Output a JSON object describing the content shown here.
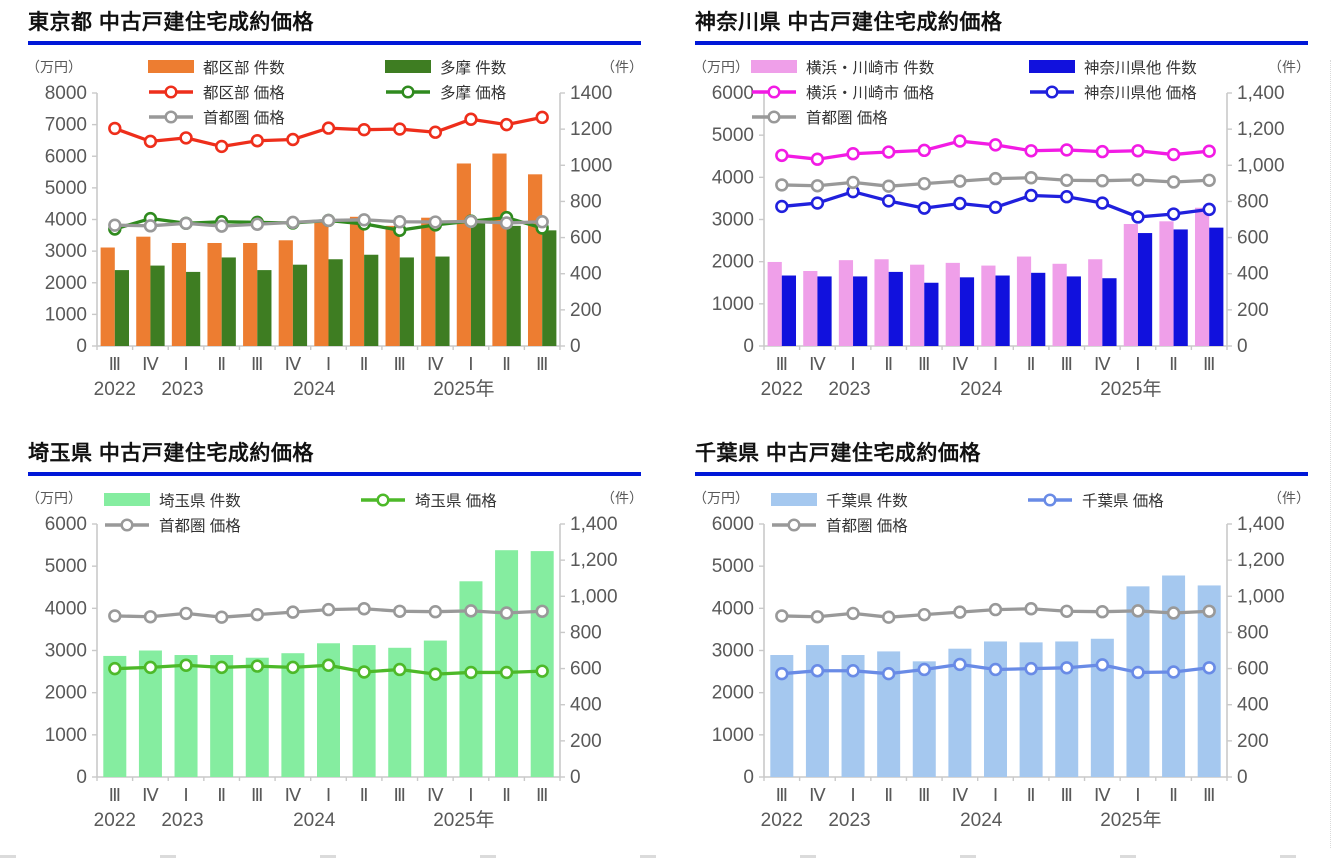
{
  "page": {
    "background": "#FFFFFF"
  },
  "chart_data": [
    {
      "type": "bar",
      "region": "tokyo",
      "title": "東京都 中古戸建住宅成約価格",
      "unit_left": "（万円）",
      "unit_right": "（件）",
      "underline_color": "#0018D8",
      "categories": [
        "Ⅲ",
        "Ⅳ",
        "Ⅰ",
        "Ⅱ",
        "Ⅲ",
        "Ⅳ",
        "Ⅰ",
        "Ⅱ",
        "Ⅲ",
        "Ⅳ",
        "Ⅰ",
        "Ⅱ",
        "Ⅲ"
      ],
      "year_labels": [
        {
          "label": "2022",
          "pos": 0
        },
        {
          "label": "2023",
          "pos": 1.9
        },
        {
          "label": "2024",
          "pos": 5.6
        },
        {
          "label": "2025年",
          "pos": 9.8
        }
      ],
      "left_axis": {
        "min": 0,
        "max": 8000,
        "step": 1000,
        "format": "plain"
      },
      "right_axis": {
        "min": 0,
        "max": 1400,
        "step": 200,
        "format": "plain"
      },
      "grid": "off",
      "legend_position": "top-inside",
      "bar_series": [
        {
          "name": "都区部 件数",
          "color": "#ED7D31",
          "axis": "right",
          "values": [
            545,
            605,
            570,
            570,
            570,
            585,
            700,
            715,
            665,
            710,
            1010,
            1065,
            950
          ]
        },
        {
          "name": "多摩 件数",
          "color": "#3E7D22",
          "axis": "right",
          "values": [
            420,
            445,
            410,
            490,
            420,
            450,
            480,
            505,
            490,
            495,
            685,
            665,
            640
          ]
        }
      ],
      "line_series": [
        {
          "name": "都区部 価格",
          "color": "#EE2E1B",
          "axis": "left",
          "values": [
            6880,
            6470,
            6580,
            6310,
            6490,
            6530,
            6890,
            6840,
            6860,
            6760,
            7170,
            7000,
            7230
          ]
        },
        {
          "name": "多摩 価格",
          "color": "#2F8A1E",
          "axis": "left",
          "values": [
            3700,
            4030,
            3880,
            3930,
            3910,
            3890,
            3970,
            3860,
            3660,
            3830,
            3950,
            4060,
            3730
          ]
        },
        {
          "name": "首都圏 価格",
          "color": "#999999",
          "axis": "left",
          "values": [
            3820,
            3800,
            3880,
            3790,
            3850,
            3910,
            3970,
            3990,
            3930,
            3920,
            3940,
            3890,
            3930
          ]
        }
      ]
    },
    {
      "type": "bar",
      "region": "kanagawa",
      "title": "神奈川県 中古戸建住宅成約価格",
      "unit_left": "（万円）",
      "unit_right": "（件）",
      "underline_color": "#0018D8",
      "categories": [
        "Ⅲ",
        "Ⅳ",
        "Ⅰ",
        "Ⅱ",
        "Ⅲ",
        "Ⅳ",
        "Ⅰ",
        "Ⅱ",
        "Ⅲ",
        "Ⅳ",
        "Ⅰ",
        "Ⅱ",
        "Ⅲ"
      ],
      "year_labels": [
        {
          "label": "2022",
          "pos": 0
        },
        {
          "label": "2023",
          "pos": 1.9
        },
        {
          "label": "2024",
          "pos": 5.6
        },
        {
          "label": "2025年",
          "pos": 9.8
        }
      ],
      "left_axis": {
        "min": 0,
        "max": 6000,
        "step": 1000,
        "format": "plain"
      },
      "right_axis": {
        "min": 0,
        "max": 1400,
        "step": 200,
        "format": "comma"
      },
      "grid": "off",
      "legend_position": "top-inside",
      "bar_series": [
        {
          "name": "横浜・川崎市 件数",
          "color": "#EF9FE9",
          "axis": "right",
          "values": [
            465,
            415,
            475,
            480,
            450,
            460,
            445,
            495,
            455,
            480,
            675,
            690,
            765
          ]
        },
        {
          "name": "神奈川県他 件数",
          "color": "#1111DD",
          "axis": "right",
          "values": [
            390,
            385,
            385,
            410,
            350,
            380,
            390,
            405,
            385,
            375,
            625,
            645,
            655
          ]
        }
      ],
      "line_series": [
        {
          "name": "横浜・川崎市 価格",
          "color": "#F21BE4",
          "axis": "left",
          "values": [
            4520,
            4430,
            4560,
            4600,
            4640,
            4860,
            4770,
            4630,
            4650,
            4610,
            4630,
            4540,
            4620
          ]
        },
        {
          "name": "神奈川県他 価格",
          "color": "#2020DD",
          "axis": "left",
          "values": [
            3310,
            3390,
            3660,
            3440,
            3270,
            3380,
            3290,
            3570,
            3540,
            3390,
            3060,
            3130,
            3240
          ]
        },
        {
          "name": "首都圏 価格",
          "color": "#999999",
          "axis": "left",
          "values": [
            3820,
            3800,
            3880,
            3790,
            3850,
            3910,
            3970,
            3990,
            3930,
            3920,
            3940,
            3890,
            3930
          ]
        }
      ]
    },
    {
      "type": "bar",
      "region": "saitama",
      "title": "埼玉県 中古戸建住宅成約価格",
      "unit_left": "（万円）",
      "unit_right": "（件）",
      "underline_color": "#0018D8",
      "categories": [
        "Ⅲ",
        "Ⅳ",
        "Ⅰ",
        "Ⅱ",
        "Ⅲ",
        "Ⅳ",
        "Ⅰ",
        "Ⅱ",
        "Ⅲ",
        "Ⅳ",
        "Ⅰ",
        "Ⅱ",
        "Ⅲ"
      ],
      "year_labels": [
        {
          "label": "2022",
          "pos": 0
        },
        {
          "label": "2023",
          "pos": 1.9
        },
        {
          "label": "2024",
          "pos": 5.6
        },
        {
          "label": "2025年",
          "pos": 9.8
        }
      ],
      "left_axis": {
        "min": 0,
        "max": 6000,
        "step": 1000,
        "format": "plain"
      },
      "right_axis": {
        "min": 0,
        "max": 1400,
        "step": 200,
        "format": "comma"
      },
      "grid": "off",
      "legend_position": "top-inside",
      "bar_series": [
        {
          "name": "埼玉県 件数",
          "color": "#85EDA0",
          "axis": "right",
          "values": [
            670,
            700,
            675,
            675,
            660,
            685,
            740,
            730,
            715,
            755,
            1083,
            1255,
            1250
          ]
        }
      ],
      "line_series": [
        {
          "name": "埼玉県 価格",
          "color": "#4DB929",
          "axis": "left",
          "values": [
            2570,
            2600,
            2650,
            2600,
            2630,
            2600,
            2650,
            2490,
            2550,
            2440,
            2480,
            2480,
            2510
          ]
        },
        {
          "name": "首都圏 価格",
          "color": "#999999",
          "axis": "left",
          "values": [
            3820,
            3800,
            3880,
            3790,
            3850,
            3910,
            3970,
            3990,
            3930,
            3920,
            3940,
            3890,
            3930
          ]
        }
      ]
    },
    {
      "type": "bar",
      "region": "chiba",
      "title": "千葉県 中古戸建住宅成約価格",
      "unit_left": "（万円）",
      "unit_right": "（件）",
      "underline_color": "#0018D8",
      "categories": [
        "Ⅲ",
        "Ⅳ",
        "Ⅰ",
        "Ⅱ",
        "Ⅲ",
        "Ⅳ",
        "Ⅰ",
        "Ⅱ",
        "Ⅲ",
        "Ⅳ",
        "Ⅰ",
        "Ⅱ",
        "Ⅲ"
      ],
      "year_labels": [
        {
          "label": "2022",
          "pos": 0
        },
        {
          "label": "2023",
          "pos": 1.9
        },
        {
          "label": "2024",
          "pos": 5.6
        },
        {
          "label": "2025年",
          "pos": 9.8
        }
      ],
      "left_axis": {
        "min": 0,
        "max": 6000,
        "step": 1000,
        "format": "plain"
      },
      "right_axis": {
        "min": 0,
        "max": 1400,
        "step": 200,
        "format": "comma"
      },
      "grid": "off",
      "legend_position": "top-inside",
      "bar_series": [
        {
          "name": "千葉県 件数",
          "color": "#A5C8EF",
          "axis": "right",
          "values": [
            675,
            730,
            675,
            695,
            640,
            710,
            750,
            745,
            750,
            765,
            1055,
            1115,
            1060
          ]
        }
      ],
      "line_series": [
        {
          "name": "千葉県 価格",
          "color": "#698BE6",
          "axis": "left",
          "values": [
            2450,
            2520,
            2520,
            2450,
            2550,
            2670,
            2550,
            2570,
            2590,
            2660,
            2480,
            2490,
            2590
          ]
        },
        {
          "name": "首都圏 価格",
          "color": "#999999",
          "axis": "left",
          "values": [
            3820,
            3800,
            3880,
            3790,
            3850,
            3910,
            3970,
            3990,
            3930,
            3920,
            3940,
            3890,
            3930
          ]
        }
      ]
    }
  ]
}
